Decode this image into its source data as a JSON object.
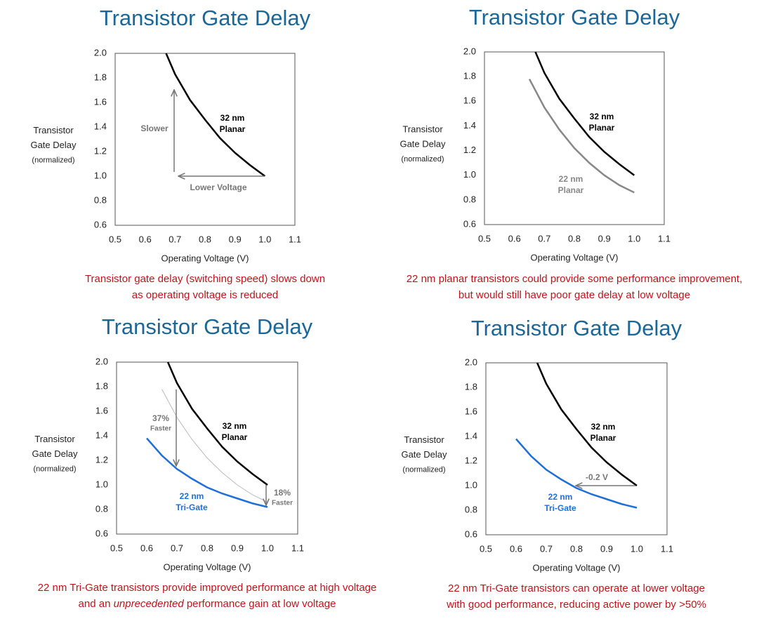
{
  "chart_data": [
    {
      "type": "line",
      "title": "Transistor Gate Delay",
      "ylabel": [
        "Transistor",
        "Gate Delay",
        "(normalized)"
      ],
      "xlabel": "Operating Voltage (V)",
      "xlim": [
        0.5,
        1.1
      ],
      "xticks": [
        0.5,
        0.6,
        0.7,
        0.8,
        0.9,
        {
          "value": 1.0,
          "label": "1.0"
        },
        1.1
      ],
      "ylim": [
        0.6,
        2.0
      ],
      "yticks": [
        0.6,
        0.8,
        {
          "value": 1.0,
          "label": "1.0"
        },
        1.2,
        1.4,
        1.6,
        1.8,
        {
          "value": 2.0,
          "label": "2.0"
        }
      ],
      "series": [
        {
          "label": [
            "32 nm",
            "Planar"
          ],
          "color": "#000000",
          "x": [
            0.67,
            0.7,
            0.75,
            0.8,
            0.85,
            0.9,
            0.95,
            1.0
          ],
          "values": [
            2.0,
            1.83,
            1.62,
            1.46,
            1.31,
            1.19,
            1.09,
            1.0
          ]
        }
      ],
      "annotations": [
        [
          "Slower"
        ],
        [
          "Lower Voltage"
        ]
      ],
      "caption": [
        [
          "Transistor gate delay (switching speed) slows down"
        ],
        [
          "as operating voltage is reduced"
        ]
      ]
    },
    {
      "type": "line",
      "title": "Transistor Gate Delay",
      "ylabel": [
        "Transistor",
        "Gate Delay",
        "(normalized)"
      ],
      "xlabel": "Operating Voltage (V)",
      "xlim": [
        0.5,
        1.1
      ],
      "xticks": [
        0.5,
        0.6,
        0.7,
        0.8,
        0.9,
        {
          "value": 1.0,
          "label": "1.0"
        },
        1.1
      ],
      "ylim": [
        0.6,
        2.0
      ],
      "yticks": [
        0.6,
        0.8,
        {
          "value": 1.0,
          "label": "1.0"
        },
        1.2,
        1.4,
        1.6,
        1.8,
        {
          "value": 2.0,
          "label": "2.0"
        }
      ],
      "series": [
        {
          "label": [
            "32 nm",
            "Planar"
          ],
          "color": "#000000",
          "x": [
            0.67,
            0.7,
            0.75,
            0.8,
            0.85,
            0.9,
            0.95,
            1.0
          ],
          "values": [
            2.0,
            1.83,
            1.62,
            1.46,
            1.31,
            1.19,
            1.09,
            1.0
          ]
        },
        {
          "label": [
            "22 nm",
            "Planar"
          ],
          "color": "#888888",
          "x": [
            0.65,
            0.7,
            0.75,
            0.8,
            0.85,
            0.9,
            0.95,
            1.0
          ],
          "values": [
            1.78,
            1.55,
            1.37,
            1.22,
            1.1,
            1.0,
            0.92,
            0.86
          ]
        }
      ],
      "annotations": [],
      "caption": [
        [
          "22 nm planar transistors could provide some performance improvement,"
        ],
        [
          "but would still have poor gate delay at low voltage"
        ]
      ]
    },
    {
      "type": "line",
      "title": "Transistor Gate Delay",
      "ylabel": [
        "Transistor",
        "Gate Delay",
        "(normalized)"
      ],
      "xlabel": "Operating Voltage (V)",
      "xlim": [
        0.5,
        1.1
      ],
      "xticks": [
        0.5,
        0.6,
        0.7,
        0.8,
        0.9,
        {
          "value": 1.0,
          "label": "1.0"
        },
        1.1
      ],
      "ylim": [
        0.6,
        2.0
      ],
      "yticks": [
        0.6,
        0.8,
        {
          "value": 1.0,
          "label": "1.0"
        },
        1.2,
        1.4,
        1.6,
        1.8,
        {
          "value": 2.0,
          "label": "2.0"
        }
      ],
      "series": [
        {
          "label": [
            "32 nm",
            "Planar"
          ],
          "color": "#000000",
          "x": [
            0.67,
            0.7,
            0.75,
            0.8,
            0.85,
            0.9,
            0.95,
            1.0
          ],
          "values": [
            2.0,
            1.83,
            1.62,
            1.46,
            1.31,
            1.19,
            1.09,
            1.0
          ]
        },
        {
          "color": "#bbbbbb",
          "x": [
            0.65,
            0.7,
            0.75,
            0.8,
            0.85,
            0.9,
            0.95,
            1.0
          ],
          "values": [
            1.78,
            1.55,
            1.37,
            1.22,
            1.1,
            1.0,
            0.92,
            0.86
          ]
        },
        {
          "label": [
            "22 nm",
            "Tri-Gate"
          ],
          "color": "#1e6fd9",
          "x": [
            0.6,
            0.65,
            0.7,
            0.75,
            0.8,
            0.85,
            0.9,
            0.95,
            1.0
          ],
          "values": [
            1.38,
            1.24,
            1.13,
            1.05,
            0.98,
            0.93,
            0.89,
            0.85,
            0.82
          ]
        }
      ],
      "annotations": [
        [
          "37%",
          "Faster"
        ],
        [
          "18%",
          "Faster"
        ]
      ],
      "caption": [
        [
          "22 nm Tri-Gate transistors provide improved performance at high voltage"
        ],
        [
          "and an ",
          {
            "text": "unprecedented",
            "italic": true
          },
          " performance gain at low voltage"
        ]
      ]
    },
    {
      "type": "line",
      "title": "Transistor Gate Delay",
      "ylabel": [
        "Transistor",
        "Gate Delay",
        "(normalized)"
      ],
      "xlabel": "Operating Voltage (V)",
      "xlim": [
        0.5,
        1.1
      ],
      "xticks": [
        0.5,
        0.6,
        0.7,
        0.8,
        0.9,
        {
          "value": 1.0,
          "label": "1.0"
        },
        1.1
      ],
      "ylim": [
        0.6,
        2.0
      ],
      "yticks": [
        0.6,
        0.8,
        {
          "value": 1.0,
          "label": "1.0"
        },
        1.2,
        1.4,
        1.6,
        1.8,
        {
          "value": 2.0,
          "label": "2.0"
        }
      ],
      "series": [
        {
          "label": [
            "32 nm",
            "Planar"
          ],
          "color": "#000000",
          "x": [
            0.67,
            0.7,
            0.75,
            0.8,
            0.85,
            0.9,
            0.95,
            1.0
          ],
          "values": [
            2.0,
            1.83,
            1.62,
            1.46,
            1.31,
            1.19,
            1.09,
            1.0
          ]
        },
        {
          "label": [
            "22 nm",
            "Tri-Gate"
          ],
          "color": "#1e6fd9",
          "x": [
            0.6,
            0.65,
            0.7,
            0.75,
            0.8,
            0.85,
            0.9,
            0.95,
            1.0
          ],
          "values": [
            1.38,
            1.24,
            1.13,
            1.05,
            0.98,
            0.93,
            0.89,
            0.85,
            0.82
          ]
        }
      ],
      "annotations": [
        [
          "-0.2 V"
        ]
      ],
      "caption": [
        [
          "22 nm Tri-Gate transistors can operate at lower voltage"
        ],
        [
          "with good performance, reducing active power by >50%"
        ]
      ]
    }
  ]
}
